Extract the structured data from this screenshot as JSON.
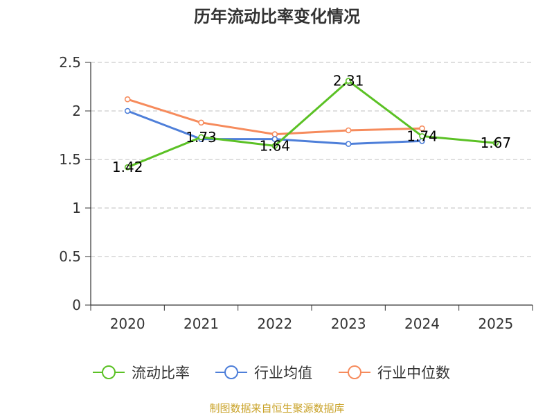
{
  "chart_data": {
    "type": "line",
    "title": "历年流动比率变化情况",
    "categories": [
      "2020",
      "2021",
      "2022",
      "2023",
      "2024",
      "2025"
    ],
    "y_ticks": [
      "0",
      "0.5",
      "1",
      "1.5",
      "2",
      "2.5"
    ],
    "ylim": [
      0,
      2.5
    ],
    "grid": true,
    "legend_position": "bottom",
    "series": [
      {
        "name": "流动比率",
        "color": "#5bc125",
        "values": [
          1.42,
          1.73,
          1.64,
          2.31,
          1.74,
          1.67
        ],
        "labels": [
          "1.42",
          "1.73",
          "1.64",
          "2.31",
          "1.74",
          "1.67"
        ]
      },
      {
        "name": "行业均值",
        "color": "#4e7fd9",
        "values": [
          2.0,
          1.71,
          1.71,
          1.66,
          1.69,
          null
        ]
      },
      {
        "name": "行业中位数",
        "color": "#f68b5c",
        "values": [
          2.12,
          1.88,
          1.76,
          1.8,
          1.82,
          null
        ]
      }
    ],
    "source": "制图数据来自恒生聚源数据库"
  }
}
